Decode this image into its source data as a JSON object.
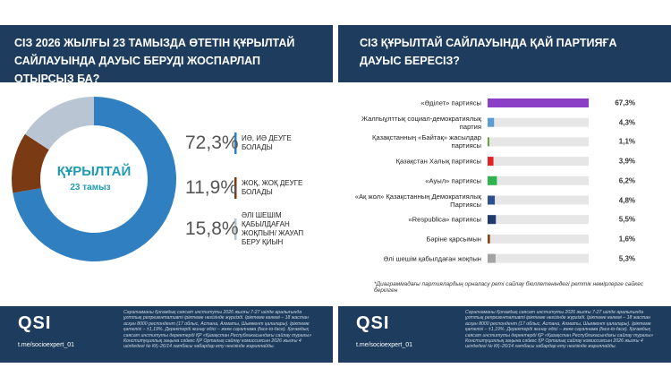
{
  "chart_data": [
    {
      "type": "pie",
      "donut": true,
      "title": "СІЗ 2026 ЖЫЛҒЫ 23 ТАМЫЗДА ӨТЕТІН ҚҰРЫЛТАЙ САЙЛАУЫНДА ДАУЫС БЕРУДІ ЖОСПАРЛАП ОТЫРСЫЗ БА?",
      "center_title": "ҚҰРЫЛТАЙ",
      "center_subtitle": "23 тамыз",
      "categories": [
        "ИӘ, ИӘ ДЕУГЕ БОЛАДЫ",
        "ЖОҚ, ЖОҚ ДЕУГЕ БОЛАДЫ",
        "ӘЛІ ШЕШІМ ҚАБЫЛДАҒАН ЖОҚПЫН/ ЖАУАП БЕРУ ҚИЫН"
      ],
      "values": [
        72.3,
        11.9,
        15.8
      ],
      "value_labels": [
        "72,3%",
        "11,9%",
        "15,8%"
      ],
      "colors": [
        "#2f7fc1",
        "#7a3b14",
        "#b9c5d3"
      ]
    },
    {
      "type": "bar",
      "horizontal": true,
      "title": "СІЗ ҚҰРЫЛТАЙ САЙЛАУЫНДА ҚАЙ ПАРТИЯҒА ДАУЫС БЕРЕСІЗ?",
      "categories": [
        "«Әділет» партиясы",
        "Жалпыұлттық социал-демократиялық партия",
        "Қазақстанның «Байтақ» жасылдар партиясы",
        "Қазақстан Халық партиясы",
        "«Ауыл» партиясы",
        "«Ақ жол» Қазақстанның Демократиялық Партиясы",
        "«Respublica» партиясы",
        "Бәріне қарсымын",
        "Әлі шешім қабылдаған жоқпын"
      ],
      "values": [
        67.3,
        4.3,
        1.1,
        3.9,
        6.2,
        4.8,
        5.5,
        1.6,
        5.3
      ],
      "value_labels": [
        "67,3%",
        "4,3%",
        "1,1%",
        "3,9%",
        "6,2%",
        "4,8%",
        "5,5%",
        "1,6%",
        "5,3%"
      ],
      "colors": [
        "#8a3fc6",
        "#5b9bd5",
        "#5a9e2d",
        "#e02424",
        "#2fb34c",
        "#2e4f8e",
        "#1f3b6e",
        "#8b4513",
        "#a3a3a3"
      ],
      "annotation": "*Диаграммадағы партиялардың орналасу реті сайлау бюллетеніндегі реттік нөмірлерге сәйкес берілген"
    }
  ],
  "footer": {
    "logo": "QSI",
    "link": "t.me/socioexpert_01",
    "note": "Сауалнаманы Қоғамдық саясат институты 2026 жылғы 7-27 шілде аралығында ұлттық репрезентативті іріктеме негізінде жүргізді. Іріктеме көлемі – 18 жастан асқан 8000 респондент (17 облыс, Астана, Алматы, Шымкент қалалары). Іріктеме қателігі – ±1,19%. Деректерді жинау әдісі – жеке сауалнама (face-to-face). Қоғамдық саясат институты деректерді ҚР «Қазақстан Республикасындағы сайлау туралы» Конституциялық заңына сәйкес ҚР Орталық сайлау комиссиясын 2026 жылғы 4 шілдедегі № КҚ–26/14 хатбасы хабардар ету негізінде жариялайды."
  }
}
